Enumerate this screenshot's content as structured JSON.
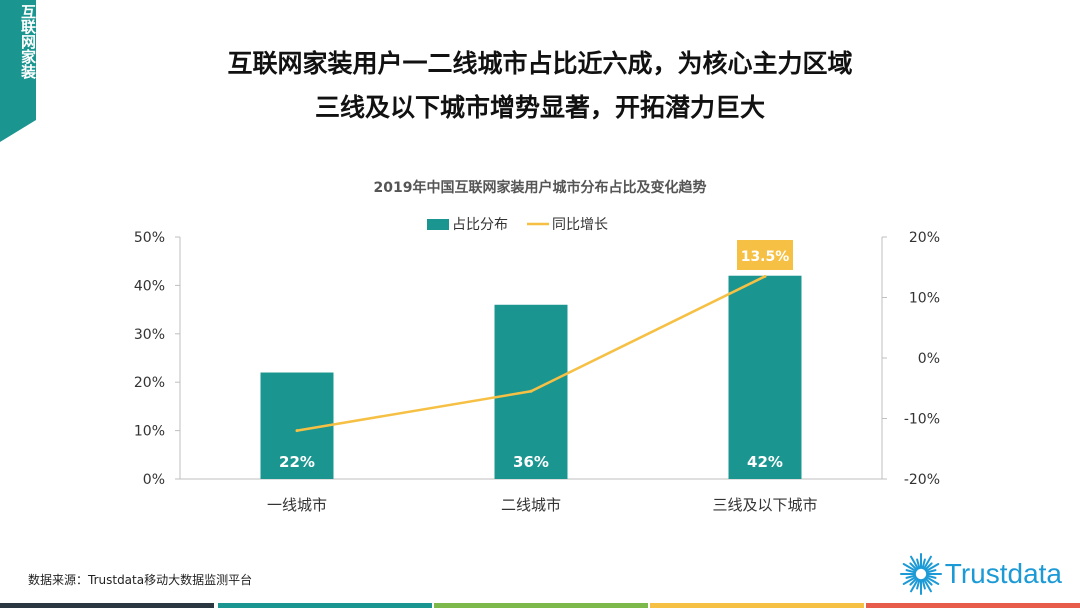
{
  "tag": {
    "text": "互联网家装"
  },
  "headline": {
    "line1": "互联网家装用户一二线城市占比近六成，为核心主力区域",
    "line2": "三线及以下城市增势显著，开拓潜力巨大"
  },
  "chart_data": {
    "type": "bar+line",
    "title": "2019年中国互联网家装用户城市分布占比及变化趋势",
    "categories": [
      "一线城市",
      "二线城市",
      "三线及以下城市"
    ],
    "series": [
      {
        "name": "占比分布",
        "type": "bar",
        "axis": "left",
        "values": [
          22,
          36,
          42
        ],
        "labels": [
          "22%",
          "36%",
          "42%"
        ],
        "color": "#1b9590"
      },
      {
        "name": "同比增长",
        "type": "line",
        "axis": "right",
        "values": [
          -12,
          -5.5,
          13.5
        ],
        "color": "#f6c044"
      }
    ],
    "callout": {
      "text": "13.5%",
      "category": "三线及以下城市",
      "color": "#f6c044"
    },
    "y_left": {
      "ylim": [
        0,
        50
      ],
      "ticks": [
        "0%",
        "10%",
        "20%",
        "30%",
        "40%",
        "50%"
      ]
    },
    "y_right": {
      "ylim": [
        -20,
        20
      ],
      "ticks": [
        "-20%",
        "-10%",
        "0%",
        "10%",
        "20%"
      ]
    },
    "grid": false,
    "legend": "top-center"
  },
  "footer": {
    "source": "数据来源：Trustdata移动大数据监测平台",
    "brand": "Trustdata",
    "bar_colors": [
      "#2b3740",
      "#1b9590",
      "#7db84a",
      "#f6c044",
      "#e65b4a"
    ]
  }
}
